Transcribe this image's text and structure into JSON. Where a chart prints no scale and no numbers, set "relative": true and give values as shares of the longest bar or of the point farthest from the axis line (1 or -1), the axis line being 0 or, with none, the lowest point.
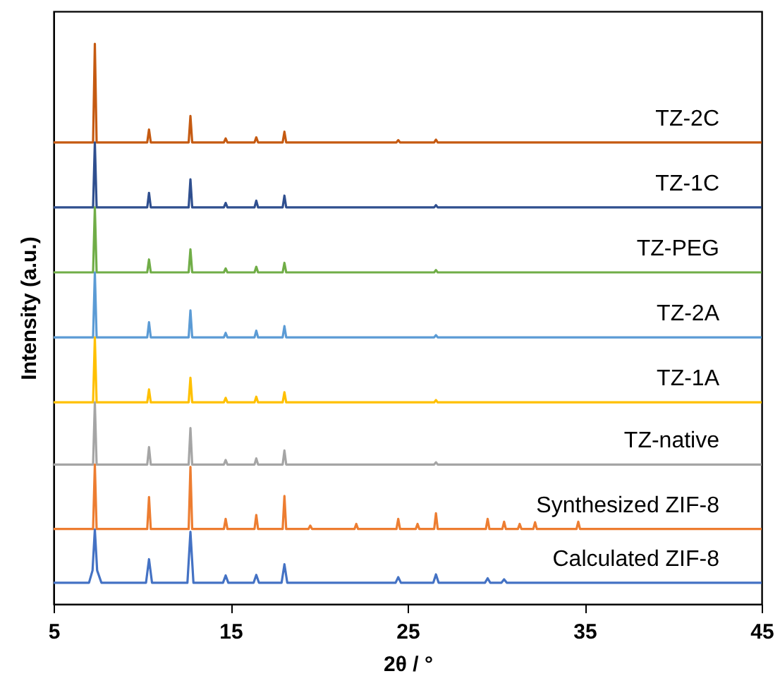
{
  "chart_data": {
    "type": "line",
    "relative": true,
    "xlabel": "2θ / °",
    "ylabel": "Intensity (a.u.)",
    "xlim": [
      5,
      45
    ],
    "xticks": [
      5,
      15,
      25,
      35,
      45
    ],
    "grid": false,
    "marker": "none",
    "line_style": "solid",
    "series": [
      {
        "name": "TZ-2C",
        "color": "#c55a11",
        "x": [
          5,
          7.23,
          7.33,
          7.43,
          10.29,
          10.39,
          10.49,
          12.63,
          12.73,
          12.83,
          14.62,
          14.72,
          14.82,
          16.35,
          16.45,
          16.55,
          17.94,
          18.04,
          18.14,
          24.37,
          24.47,
          24.57,
          26.5,
          26.6,
          26.7,
          45
        ],
        "values": [
          0.824,
          0.824,
          1.0,
          0.824,
          0.824,
          0.847,
          0.824,
          0.824,
          0.871,
          0.824,
          0.824,
          0.831,
          0.824,
          0.824,
          0.833,
          0.824,
          0.824,
          0.843,
          0.824,
          0.824,
          0.828,
          0.824,
          0.824,
          0.829,
          0.824,
          0.824
        ]
      },
      {
        "name": "TZ-1C",
        "color": "#2f4f8f",
        "x": [
          5,
          7.23,
          7.33,
          7.43,
          10.29,
          10.39,
          10.49,
          12.63,
          12.73,
          12.83,
          14.62,
          14.72,
          14.82,
          16.35,
          16.45,
          16.55,
          17.94,
          18.04,
          18.14,
          26.5,
          26.6,
          26.7,
          45
        ],
        "values": [
          0.708,
          0.708,
          0.824,
          0.708,
          0.708,
          0.734,
          0.708,
          0.708,
          0.758,
          0.708,
          0.708,
          0.716,
          0.708,
          0.708,
          0.72,
          0.708,
          0.708,
          0.729,
          0.708,
          0.708,
          0.712,
          0.708,
          0.708
        ]
      },
      {
        "name": "TZ-PEG",
        "color": "#70ad47",
        "x": [
          5,
          7.23,
          7.33,
          7.43,
          10.29,
          10.39,
          10.49,
          12.63,
          12.73,
          12.83,
          14.62,
          14.72,
          14.82,
          16.35,
          16.45,
          16.55,
          17.94,
          18.04,
          18.14,
          26.5,
          26.6,
          26.7,
          45
        ],
        "values": [
          0.592,
          0.592,
          0.708,
          0.592,
          0.592,
          0.615,
          0.592,
          0.592,
          0.633,
          0.592,
          0.592,
          0.599,
          0.592,
          0.592,
          0.602,
          0.592,
          0.592,
          0.609,
          0.592,
          0.592,
          0.596,
          0.592,
          0.592
        ]
      },
      {
        "name": "TZ-2A",
        "color": "#5b9bd5",
        "x": [
          5,
          7.23,
          7.33,
          7.43,
          10.29,
          10.39,
          10.49,
          12.63,
          12.73,
          12.83,
          14.62,
          14.72,
          14.82,
          16.35,
          16.45,
          16.55,
          17.94,
          18.04,
          18.14,
          26.5,
          26.6,
          26.7,
          45
        ],
        "values": [
          0.476,
          0.476,
          0.592,
          0.476,
          0.476,
          0.503,
          0.476,
          0.476,
          0.524,
          0.476,
          0.476,
          0.484,
          0.476,
          0.476,
          0.488,
          0.476,
          0.476,
          0.496,
          0.476,
          0.476,
          0.48,
          0.476,
          0.476
        ]
      },
      {
        "name": "TZ-1A",
        "color": "#ffc000",
        "x": [
          5,
          7.23,
          7.33,
          7.43,
          10.29,
          10.39,
          10.49,
          12.63,
          12.73,
          12.83,
          14.62,
          14.72,
          14.82,
          16.35,
          16.45,
          16.55,
          17.94,
          18.04,
          18.14,
          26.5,
          26.6,
          26.7,
          45
        ],
        "values": [
          0.36,
          0.36,
          0.476,
          0.36,
          0.36,
          0.383,
          0.36,
          0.36,
          0.404,
          0.36,
          0.36,
          0.368,
          0.36,
          0.36,
          0.37,
          0.36,
          0.36,
          0.378,
          0.36,
          0.36,
          0.364,
          0.36,
          0.36
        ]
      },
      {
        "name": "TZ-native",
        "color": "#a5a5a5",
        "x": [
          5,
          7.23,
          7.33,
          7.43,
          10.29,
          10.39,
          10.49,
          12.63,
          12.73,
          12.83,
          14.62,
          14.72,
          14.82,
          16.35,
          16.45,
          16.55,
          17.94,
          18.04,
          18.14,
          26.5,
          26.6,
          26.7,
          45
        ],
        "values": [
          0.249,
          0.249,
          0.36,
          0.249,
          0.249,
          0.28,
          0.249,
          0.249,
          0.314,
          0.249,
          0.249,
          0.257,
          0.249,
          0.249,
          0.26,
          0.249,
          0.249,
          0.274,
          0.249,
          0.249,
          0.253,
          0.249,
          0.249
        ]
      },
      {
        "name": "Synthesized ZIF-8",
        "color": "#ed7d31",
        "x": [
          5,
          7.23,
          7.33,
          7.43,
          10.29,
          10.39,
          10.49,
          12.63,
          12.73,
          12.83,
          14.62,
          14.72,
          14.82,
          16.35,
          16.45,
          16.55,
          17.94,
          18.04,
          18.14,
          19.4,
          19.5,
          19.6,
          22.0,
          22.1,
          22.2,
          24.37,
          24.47,
          24.57,
          25.46,
          25.56,
          25.66,
          26.5,
          26.6,
          26.7,
          29.42,
          29.52,
          29.62,
          30.35,
          30.45,
          30.55,
          31.23,
          31.33,
          31.43,
          32.1,
          32.2,
          32.3,
          34.54,
          34.64,
          34.74,
          45
        ],
        "values": [
          0.134,
          0.134,
          0.249,
          0.134,
          0.134,
          0.191,
          0.134,
          0.134,
          0.245,
          0.134,
          0.134,
          0.152,
          0.134,
          0.134,
          0.159,
          0.134,
          0.134,
          0.193,
          0.134,
          0.134,
          0.14,
          0.134,
          0.134,
          0.143,
          0.134,
          0.134,
          0.152,
          0.134,
          0.134,
          0.143,
          0.134,
          0.134,
          0.162,
          0.134,
          0.134,
          0.152,
          0.134,
          0.134,
          0.147,
          0.134,
          0.134,
          0.143,
          0.134,
          0.134,
          0.146,
          0.134,
          0.134,
          0.147,
          0.134,
          0.134
        ]
      },
      {
        "name": "Calculated ZIF-8",
        "color": "#4472c4",
        "x": [
          5,
          7.0,
          7.2,
          7.33,
          7.46,
          7.7,
          10.22,
          10.39,
          10.56,
          12.56,
          12.73,
          12.9,
          14.57,
          14.72,
          14.87,
          16.3,
          16.45,
          16.6,
          17.88,
          18.04,
          18.2,
          24.32,
          24.47,
          24.62,
          26.45,
          26.6,
          26.75,
          29.37,
          29.52,
          29.67,
          30.3,
          30.45,
          30.6,
          45
        ],
        "values": [
          0.038,
          0.038,
          0.06,
          0.133,
          0.06,
          0.038,
          0.038,
          0.08,
          0.038,
          0.038,
          0.129,
          0.038,
          0.038,
          0.051,
          0.038,
          0.038,
          0.052,
          0.038,
          0.038,
          0.071,
          0.038,
          0.038,
          0.048,
          0.038,
          0.038,
          0.053,
          0.038,
          0.038,
          0.046,
          0.038,
          0.038,
          0.044,
          0.038,
          0.038
        ]
      }
    ]
  }
}
